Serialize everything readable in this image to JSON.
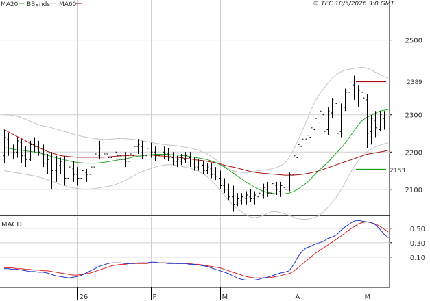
{
  "copyright": "© TEC 10/5/2026 3:0 GMT",
  "legend": [
    {
      "label": "MA20",
      "color": "#22aa22"
    },
    {
      "label": "BBands",
      "color": "#b8b8b8"
    },
    {
      "label": "MA60",
      "color": "#aa1111"
    }
  ],
  "colors": {
    "price": "#000000",
    "ma20": "#22aa22",
    "ma60": "#aa1111",
    "bands": "#c4c4c4",
    "grid": "#d0d0d0",
    "macd": "#2233cc",
    "signal": "#dd2222"
  },
  "chart_data": [
    {
      "type": "ohlc",
      "title": "",
      "ylim": [
        2030,
        2580
      ],
      "yticks": [
        2100,
        2200,
        2300,
        2500
      ],
      "grid": true,
      "xticks": [
        {
          "label": "26",
          "index": 17
        },
        {
          "label": "F",
          "index": 34
        },
        {
          "label": "M",
          "index": 50
        },
        {
          "label": "A",
          "index": 67
        },
        {
          "label": "M",
          "index": 83
        }
      ],
      "ohlc": [
        [
          2190,
          2260,
          2170,
          2240
        ],
        [
          2235,
          2250,
          2190,
          2205
        ],
        [
          2205,
          2220,
          2180,
          2200
        ],
        [
          2200,
          2240,
          2185,
          2230
        ],
        [
          2225,
          2235,
          2170,
          2190
        ],
        [
          2190,
          2215,
          2160,
          2180
        ],
        [
          2180,
          2230,
          2175,
          2220
        ],
        [
          2220,
          2240,
          2200,
          2215
        ],
        [
          2210,
          2230,
          2190,
          2200
        ],
        [
          2195,
          2220,
          2160,
          2170
        ],
        [
          2170,
          2195,
          2140,
          2180
        ],
        [
          2175,
          2200,
          2100,
          2150
        ],
        [
          2150,
          2190,
          2120,
          2170
        ],
        [
          2165,
          2185,
          2140,
          2175
        ],
        [
          2170,
          2190,
          2110,
          2130
        ],
        [
          2130,
          2170,
          2105,
          2160
        ],
        [
          2155,
          2175,
          2120,
          2140
        ],
        [
          2140,
          2160,
          2110,
          2130
        ],
        [
          2130,
          2160,
          2120,
          2150
        ],
        [
          2145,
          2155,
          2120,
          2140
        ],
        [
          2140,
          2175,
          2130,
          2160
        ],
        [
          2160,
          2200,
          2150,
          2195
        ],
        [
          2190,
          2230,
          2180,
          2210
        ],
        [
          2205,
          2230,
          2180,
          2195
        ],
        [
          2195,
          2220,
          2170,
          2185
        ],
        [
          2185,
          2215,
          2160,
          2205
        ],
        [
          2200,
          2220,
          2175,
          2190
        ],
        [
          2190,
          2210,
          2165,
          2180
        ],
        [
          2180,
          2200,
          2160,
          2175
        ],
        [
          2175,
          2210,
          2165,
          2195
        ],
        [
          2190,
          2260,
          2180,
          2215
        ],
        [
          2215,
          2235,
          2195,
          2220
        ],
        [
          2215,
          2230,
          2180,
          2190
        ],
        [
          2190,
          2220,
          2180,
          2210
        ],
        [
          2205,
          2225,
          2185,
          2200
        ],
        [
          2200,
          2215,
          2175,
          2190
        ],
        [
          2190,
          2210,
          2180,
          2205
        ],
        [
          2200,
          2215,
          2180,
          2195
        ],
        [
          2195,
          2210,
          2175,
          2185
        ],
        [
          2185,
          2200,
          2165,
          2175
        ],
        [
          2175,
          2190,
          2160,
          2180
        ],
        [
          2175,
          2195,
          2165,
          2185
        ],
        [
          2180,
          2200,
          2170,
          2190
        ],
        [
          2185,
          2200,
          2160,
          2170
        ],
        [
          2170,
          2185,
          2150,
          2160
        ],
        [
          2160,
          2180,
          2150,
          2170
        ],
        [
          2165,
          2175,
          2140,
          2150
        ],
        [
          2150,
          2170,
          2140,
          2160
        ],
        [
          2155,
          2170,
          2130,
          2140
        ],
        [
          2140,
          2160,
          2125,
          2135
        ],
        [
          2130,
          2150,
          2100,
          2110
        ],
        [
          2110,
          2130,
          2090,
          2100
        ],
        [
          2100,
          2115,
          2070,
          2080
        ],
        [
          2080,
          2110,
          2040,
          2060
        ],
        [
          2060,
          2090,
          2055,
          2075
        ],
        [
          2070,
          2090,
          2060,
          2080
        ],
        [
          2075,
          2095,
          2060,
          2085
        ],
        [
          2080,
          2100,
          2065,
          2075
        ],
        [
          2075,
          2095,
          2060,
          2085
        ],
        [
          2080,
          2100,
          2065,
          2090
        ],
        [
          2085,
          2115,
          2075,
          2105
        ],
        [
          2100,
          2120,
          2080,
          2090
        ],
        [
          2090,
          2125,
          2080,
          2115
        ],
        [
          2110,
          2120,
          2085,
          2100
        ],
        [
          2095,
          2120,
          2080,
          2110
        ],
        [
          2105,
          2120,
          2090,
          2100
        ],
        [
          2100,
          2145,
          2095,
          2140
        ],
        [
          2140,
          2200,
          2135,
          2190
        ],
        [
          2185,
          2230,
          2175,
          2220
        ],
        [
          2215,
          2245,
          2200,
          2235
        ],
        [
          2235,
          2260,
          2215,
          2245
        ],
        [
          2240,
          2270,
          2230,
          2265
        ],
        [
          2260,
          2300,
          2250,
          2290
        ],
        [
          2280,
          2330,
          2260,
          2310
        ],
        [
          2300,
          2325,
          2240,
          2255
        ],
        [
          2260,
          2320,
          2245,
          2310
        ],
        [
          2305,
          2345,
          2290,
          2340
        ],
        [
          2330,
          2350,
          2210,
          2250
        ],
        [
          2255,
          2330,
          2240,
          2320
        ],
        [
          2320,
          2370,
          2310,
          2360
        ],
        [
          2360,
          2390,
          2340,
          2385
        ],
        [
          2380,
          2405,
          2340,
          2350
        ],
        [
          2350,
          2380,
          2320,
          2365
        ],
        [
          2360,
          2375,
          2330,
          2345
        ],
        [
          2340,
          2355,
          2210,
          2250
        ],
        [
          2255,
          2300,
          2220,
          2290
        ],
        [
          2285,
          2310,
          2240,
          2265
        ],
        [
          2260,
          2310,
          2255,
          2300
        ],
        [
          2290,
          2310,
          2260,
          2280
        ]
      ],
      "series": [
        {
          "name": "MA20",
          "values": [
            2212,
            2210,
            2208,
            2206,
            2205,
            2203,
            2202,
            2200,
            2198,
            2195,
            2192,
            2188,
            2185,
            2182,
            2179,
            2176,
            2174,
            2172,
            2171,
            2170,
            2170,
            2170,
            2171,
            2172,
            2174,
            2176,
            2178,
            2180,
            2182,
            2184,
            2187,
            2189,
            2190,
            2192,
            2193,
            2194,
            2194,
            2194,
            2194,
            2193,
            2192,
            2191,
            2190,
            2188,
            2186,
            2184,
            2182,
            2180,
            2176,
            2172,
            2166,
            2160,
            2152,
            2144,
            2136,
            2128,
            2120,
            2113,
            2106,
            2100,
            2095,
            2092,
            2090,
            2088,
            2088,
            2088,
            2090,
            2094,
            2100,
            2108,
            2117,
            2128,
            2140,
            2152,
            2162,
            2173,
            2186,
            2198,
            2210,
            2224,
            2240,
            2256,
            2272,
            2285,
            2293,
            2298,
            2304,
            2310,
            2312,
            2314
          ]
        },
        {
          "name": "BBands",
          "values": [
            2300,
            2300,
            2298,
            2296,
            2292,
            2288,
            2283,
            2278,
            2273,
            2270,
            2268,
            2265,
            2262,
            2258,
            2255,
            2252,
            2248,
            2245,
            2242,
            2240,
            2238,
            2236,
            2235,
            2234,
            2234,
            2235,
            2236,
            2237,
            2236,
            2235,
            2234,
            2232,
            2230,
            2228,
            2226,
            2224,
            2222,
            2220,
            2219,
            2218,
            2217,
            2215,
            2213,
            2211,
            2208,
            2205,
            2200,
            2195,
            2188,
            2180,
            2170,
            2162,
            2155,
            2150,
            2147,
            2145,
            2145,
            2146,
            2148,
            2150,
            2152,
            2153,
            2155,
            2158,
            2163,
            2170,
            2185,
            2205,
            2230,
            2255,
            2282,
            2310,
            2335,
            2355,
            2370,
            2385,
            2398,
            2408,
            2415,
            2420,
            2422,
            2424,
            2426,
            2427,
            2425,
            2420,
            2414,
            2408,
            2402,
            2398
          ]
        },
        {
          "name": "BBands",
          "values": [
            2150,
            2148,
            2146,
            2144,
            2142,
            2140,
            2138,
            2136,
            2133,
            2130,
            2126,
            2122,
            2118,
            2113,
            2110,
            2106,
            2104,
            2102,
            2101,
            2100,
            2101,
            2102,
            2104,
            2106,
            2108,
            2110,
            2114,
            2118,
            2124,
            2130,
            2136,
            2142,
            2148,
            2152,
            2156,
            2160,
            2163,
            2165,
            2166,
            2166,
            2164,
            2162,
            2160,
            2157,
            2153,
            2148,
            2142,
            2134,
            2124,
            2112,
            2098,
            2085,
            2070,
            2058,
            2048,
            2040,
            2032,
            2026,
            2024,
            2026,
            2030,
            2036,
            2040,
            2040,
            2038,
            2034,
            2030,
            2026,
            2022,
            2020,
            2020,
            2022,
            2025,
            2030,
            2040,
            2052,
            2066,
            2080,
            2098,
            2118,
            2140,
            2160,
            2176,
            2190,
            2200,
            2208,
            2214,
            2218,
            2222,
            2225
          ]
        },
        {
          "name": "MA60",
          "values": [
            2260,
            2254,
            2248,
            2242,
            2236,
            2230,
            2224,
            2218,
            2212,
            2207,
            2202,
            2198,
            2194,
            2191,
            2189,
            2188,
            2187,
            2186,
            2186,
            2186,
            2186,
            2186,
            2186,
            2186,
            2187,
            2188,
            2189,
            2190,
            2190,
            2191,
            2191,
            2192,
            2192,
            2192,
            2192,
            2191,
            2190,
            2189,
            2188,
            2187,
            2186,
            2185,
            2183,
            2182,
            2180,
            2178,
            2177,
            2175,
            2173,
            2171,
            2168,
            2165,
            2162,
            2160,
            2157,
            2154,
            2151,
            2148,
            2146,
            2144,
            2143,
            2142,
            2141,
            2140,
            2139,
            2138,
            2138,
            2138,
            2139,
            2140,
            2142,
            2144,
            2147,
            2150,
            2154,
            2158,
            2162,
            2166,
            2170,
            2174,
            2178,
            2182,
            2186,
            2190,
            2194,
            2196,
            2198,
            2200,
            2202,
            2205
          ]
        }
      ],
      "annotations": [
        {
          "label": "2389",
          "value": 2389,
          "color": "#aa1111"
        },
        {
          "label": "2153",
          "value": 2153,
          "color": "#119911"
        }
      ]
    },
    {
      "type": "line",
      "title": "MACD",
      "ylim": [
        -32,
        66
      ],
      "ytick_labels": [
        "0.50",
        "0.30",
        "0.10"
      ],
      "ytick_values": [
        50,
        30,
        10
      ],
      "series": [
        {
          "name": "",
          "values": [
            -6,
            -6,
            -7,
            -7,
            -8,
            -9,
            -10,
            -10,
            -11,
            -11,
            -12,
            -14,
            -16,
            -17,
            -18,
            -19,
            -18,
            -17,
            -15,
            -12,
            -9,
            -6,
            -3,
            -1,
            1,
            2,
            2,
            2,
            1,
            1,
            1,
            2,
            2,
            2,
            3,
            3,
            2,
            2,
            1,
            1,
            1,
            1,
            1,
            0,
            0,
            -1,
            -2,
            -3,
            -5,
            -7,
            -9,
            -11,
            -13,
            -16,
            -19,
            -21,
            -22,
            -22,
            -22,
            -21,
            -19,
            -18,
            -16,
            -14,
            -12,
            -11,
            -9,
            -1,
            10,
            18,
            23,
            25,
            28,
            30,
            32,
            36,
            38,
            41,
            47,
            52,
            56,
            60,
            61,
            60,
            59,
            58,
            55,
            49,
            42,
            37
          ]
        },
        {
          "name": "",
          "values": [
            -5,
            -5,
            -5,
            -6,
            -6,
            -7,
            -7,
            -8,
            -8,
            -9,
            -9,
            -10,
            -11,
            -12,
            -13,
            -14,
            -15,
            -15,
            -14,
            -13,
            -12,
            -10,
            -8,
            -6,
            -4,
            -2,
            -1,
            0,
            0,
            1,
            1,
            1,
            1,
            1,
            2,
            2,
            2,
            2,
            2,
            2,
            1,
            1,
            1,
            1,
            0,
            0,
            -1,
            -2,
            -3,
            -4,
            -5,
            -7,
            -9,
            -11,
            -13,
            -15,
            -17,
            -18,
            -19,
            -19,
            -19,
            -19,
            -18,
            -17,
            -16,
            -14,
            -13,
            -10,
            -5,
            0,
            5,
            10,
            15,
            19,
            23,
            27,
            31,
            35,
            39,
            44,
            48,
            52,
            56,
            58,
            59,
            58,
            56,
            53,
            49,
            45
          ]
        }
      ]
    }
  ]
}
